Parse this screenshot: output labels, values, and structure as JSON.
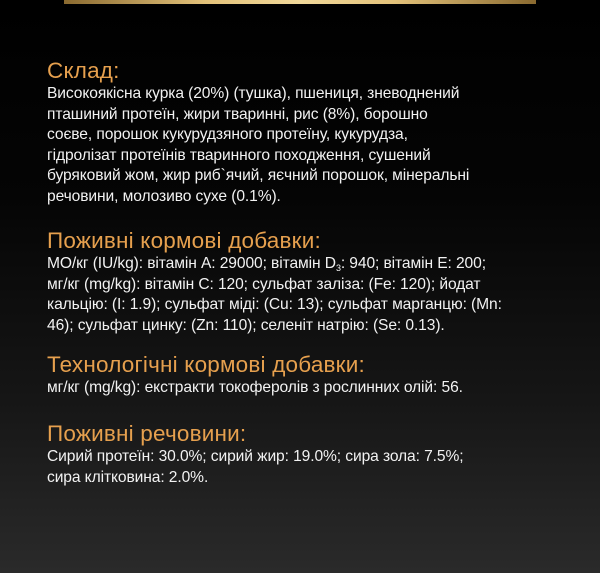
{
  "colors": {
    "heading": "#e6a04e",
    "text": "#f2f2f2",
    "accent_bar": "#e3c27a"
  },
  "sections": [
    {
      "heading": "Склад:",
      "lines": [
        "Високоякісна курка (20%) (тушка), пшениця, зневоднений",
        "пташиний протеїн, жири тваринні, рис (8%), борошно",
        "соєве, порошок кукурудзяного протеїну, кукурудза,",
        "гідролізат протеїнів тваринного походження, сушений",
        "буряковий жом, жир риб`ячий, яєчний порошок, мінеральні",
        "речовини, молозиво сухе (0.1%)."
      ]
    },
    {
      "heading": "Поживні кормові добавки:",
      "line1": {
        "before": "МО/кг (IU/kg): вітамін А: 29000; вітамін D",
        "sub": "3",
        "after": ": 940; вітамін Е: 200;"
      },
      "lines": [
        "мг/кг (mg/kg): вітамін С: 120; сульфат заліза: (Fe: 120); йодат",
        "кальцію: (I: 1.9); сульфат міді: (Cu: 13); сульфат марганцю: (Mn:",
        "46); сульфат цинку: (Zn: 110); селеніт натрію: (Se: 0.13)."
      ]
    },
    {
      "heading": "Технологічні кормові добавки:",
      "lines": [
        "мг/кг (mg/kg): екстракти токоферолів з рослинних олій: 56."
      ]
    },
    {
      "heading": "Поживні речовини:",
      "lines": [
        "Сирий протеїн: 30.0%; сирий жир: 19.0%; сира зола: 7.5%;",
        "сира клітковина: 2.0%."
      ]
    }
  ]
}
